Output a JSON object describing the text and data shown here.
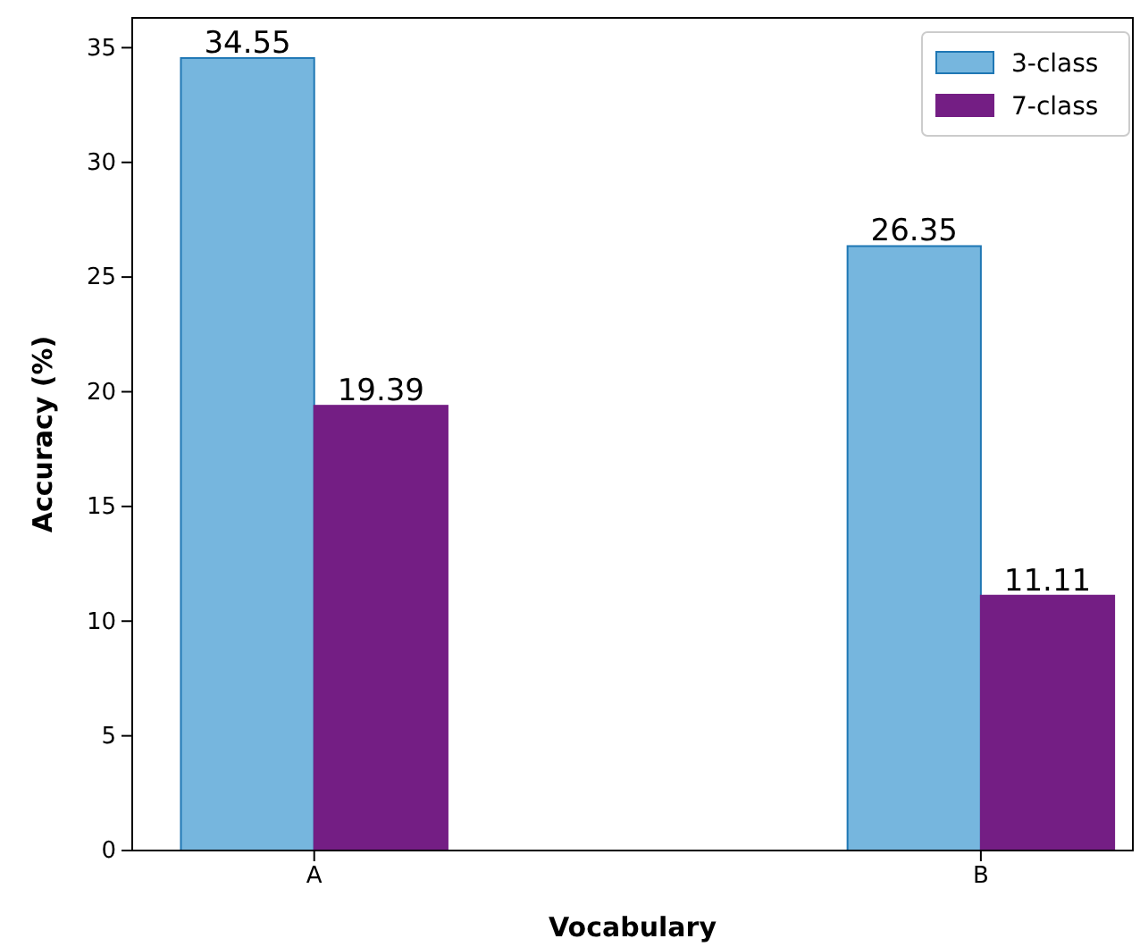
{
  "chart_data": {
    "type": "bar",
    "xlabel": "Vocabulary",
    "ylabel": "Accuracy (%)",
    "categories": [
      "A",
      "B"
    ],
    "series": [
      {
        "name": "3-class",
        "color": "#76b6de",
        "values": [
          34.55,
          26.35
        ]
      },
      {
        "name": "7-class",
        "color": "#741e84",
        "values": [
          19.39,
          11.11
        ]
      }
    ],
    "ylim": [
      0,
      36.3
    ],
    "yticks": [
      0,
      5,
      10,
      15,
      20,
      25,
      30,
      35
    ],
    "data_labels": true,
    "legend": "top right",
    "grid": false
  }
}
